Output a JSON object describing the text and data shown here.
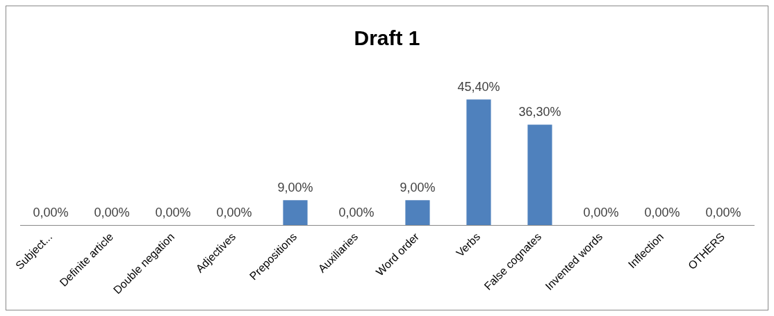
{
  "chart_data": {
    "type": "bar",
    "title": "Draft 1",
    "categories": [
      "Subject...",
      "Definite article",
      "Double negation",
      "Adjectives",
      "Prepositions",
      "Auxiliaries",
      "Word order",
      "Verbs",
      "False cognates",
      "Invented words",
      "Inflection",
      "OTHERS"
    ],
    "values": [
      0,
      0,
      0,
      0,
      9,
      0,
      9,
      45.4,
      36.3,
      0,
      0,
      0
    ],
    "value_labels": [
      "0,00%",
      "0,00%",
      "0,00%",
      "0,00%",
      "9,00%",
      "0,00%",
      "9,00%",
      "45,40%",
      "36,30%",
      "0,00%",
      "0,00%",
      "0,00%"
    ],
    "color": "#4f81bd",
    "grid": false,
    "legend": false,
    "tick_labels": "x"
  }
}
